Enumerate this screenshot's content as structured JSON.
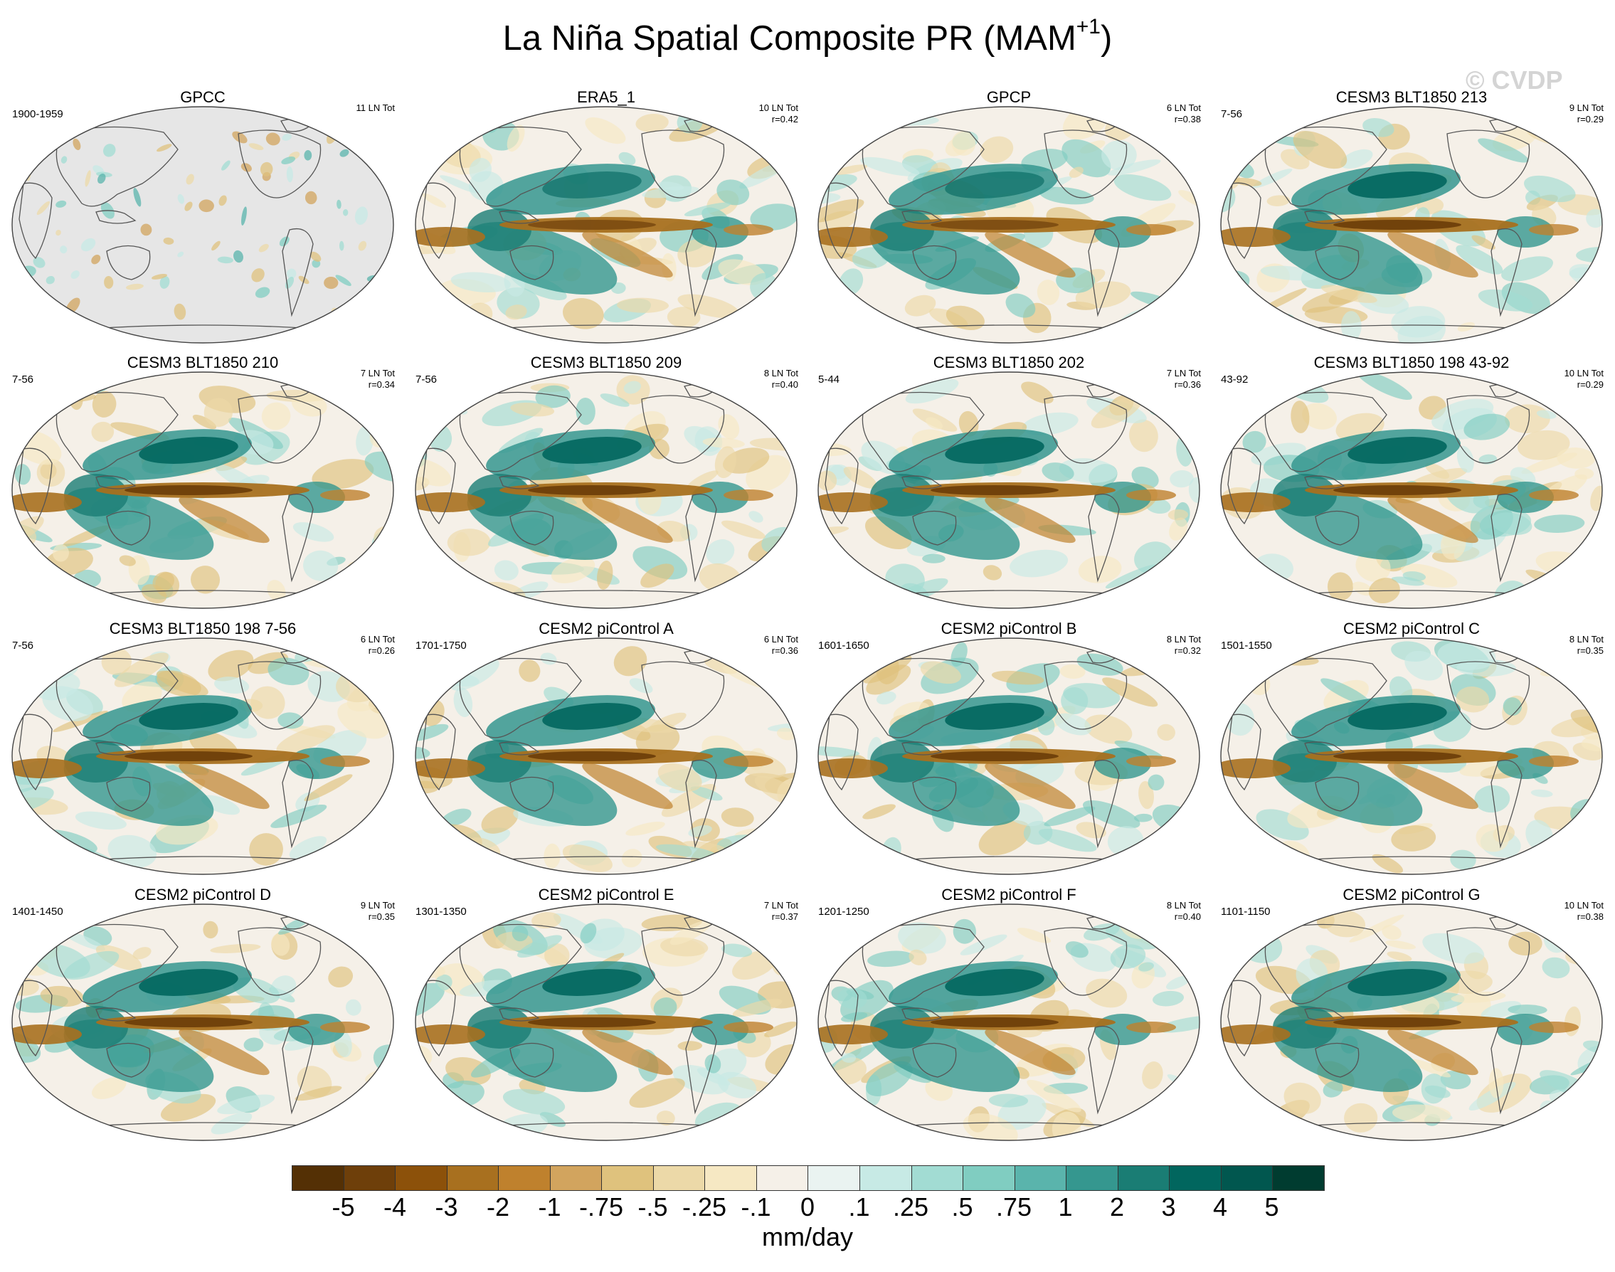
{
  "title": {
    "main": "La Niña Spatial Composite PR (MAM",
    "sup": "+1",
    "close": ")"
  },
  "watermark": "© CVDP",
  "chart_data": {
    "type": "heatmap",
    "variable": "PR",
    "season": "MAM+1",
    "units": "mm/day",
    "panels": [
      {
        "title": "GPCC",
        "years": "1900-1959",
        "events": "11 LN Tot",
        "corr": "",
        "pattern": "gpcc"
      },
      {
        "title": "ERA5_1",
        "years": "",
        "events": "10 LN Tot",
        "corr": "r=0.42",
        "pattern": "obs"
      },
      {
        "title": "GPCP",
        "years": "",
        "events": "6 LN Tot",
        "corr": "r=0.38",
        "pattern": "obs"
      },
      {
        "title": "CESM3 BLT1850 213",
        "years": "7-56",
        "events": "9 LN Tot",
        "corr": "r=0.29",
        "pattern": "model"
      },
      {
        "title": "CESM3 BLT1850 210",
        "years": "7-56",
        "events": "7 LN Tot",
        "corr": "r=0.34",
        "pattern": "model"
      },
      {
        "title": "CESM3 BLT1850 209",
        "years": "7-56",
        "events": "8 LN Tot",
        "corr": "r=0.40",
        "pattern": "model"
      },
      {
        "title": "CESM3 BLT1850 202",
        "years": "5-44",
        "events": "7 LN Tot",
        "corr": "r=0.36",
        "pattern": "model"
      },
      {
        "title": "CESM3 BLT1850 198 43-92",
        "years": "43-92",
        "events": "10 LN Tot",
        "corr": "r=0.29",
        "pattern": "model"
      },
      {
        "title": "CESM3 BLT1850 198 7-56",
        "years": "7-56",
        "events": "6 LN Tot",
        "corr": "r=0.26",
        "pattern": "model"
      },
      {
        "title": "CESM2 piControl A",
        "years": "1701-1750",
        "events": "6 LN Tot",
        "corr": "r=0.36",
        "pattern": "model"
      },
      {
        "title": "CESM2 piControl B",
        "years": "1601-1650",
        "events": "8 LN Tot",
        "corr": "r=0.32",
        "pattern": "model"
      },
      {
        "title": "CESM2 piControl C",
        "years": "1501-1550",
        "events": "8 LN Tot",
        "corr": "r=0.35",
        "pattern": "model"
      },
      {
        "title": "CESM2 piControl D",
        "years": "1401-1450",
        "events": "9 LN Tot",
        "corr": "r=0.35",
        "pattern": "model"
      },
      {
        "title": "CESM2 piControl E",
        "years": "1301-1350",
        "events": "7 LN Tot",
        "corr": "r=0.37",
        "pattern": "model"
      },
      {
        "title": "CESM2 piControl F",
        "years": "1201-1250",
        "events": "8 LN Tot",
        "corr": "r=0.40",
        "pattern": "model"
      },
      {
        "title": "CESM2 piControl G",
        "years": "1101-1150",
        "events": "10 LN Tot",
        "corr": "r=0.38",
        "pattern": "model"
      }
    ],
    "colorbar": {
      "label": "mm/day",
      "tick_labels": [
        "-5",
        "-4",
        "-3",
        "-2",
        "-1",
        "-.75",
        "-.5",
        "-.25",
        "-.1",
        "0",
        ".1",
        ".25",
        ".5",
        ".75",
        "1",
        "2",
        "3",
        "4",
        "5"
      ],
      "colors": [
        "#543005",
        "#6e3f0a",
        "#8c510a",
        "#a8701f",
        "#bf812d",
        "#d2a45e",
        "#dfc27d",
        "#ecd9a8",
        "#f6e8c3",
        "#f5f0e8",
        "#eaf3f1",
        "#c7eae5",
        "#a2dcd3",
        "#80cdc1",
        "#5ab4ac",
        "#35978f",
        "#1a7d74",
        "#01665e",
        "#01574f",
        "#003c30"
      ]
    }
  }
}
